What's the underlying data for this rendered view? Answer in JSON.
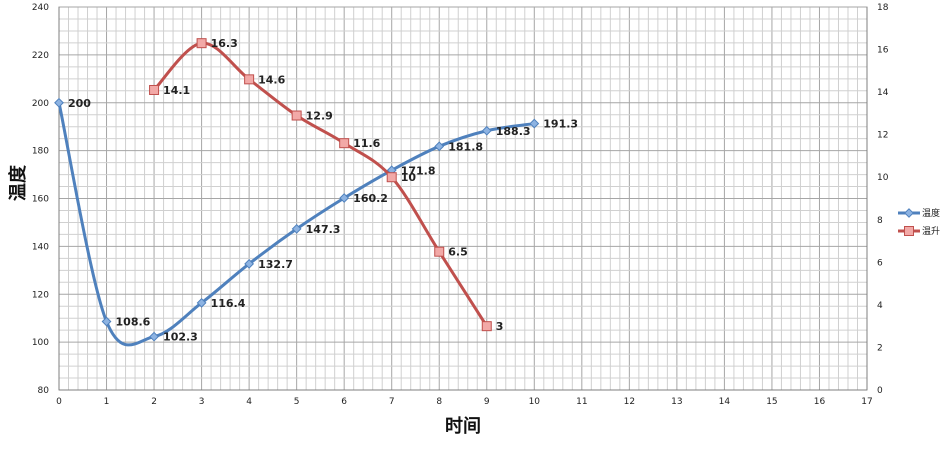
{
  "chart_data": {
    "type": "line",
    "xlabel": "时间",
    "ylabel": "温度",
    "x_ticks": [
      0,
      1,
      2,
      3,
      4,
      5,
      6,
      7,
      8,
      9,
      10,
      11,
      12,
      13,
      14,
      15,
      16,
      17
    ],
    "xlim": [
      0,
      17
    ],
    "y_left_ticks": [
      80,
      100,
      120,
      140,
      160,
      180,
      200,
      220,
      240
    ],
    "ylim_left": [
      80,
      240
    ],
    "y_right_ticks": [
      0,
      2,
      4,
      6,
      8,
      10,
      12,
      14,
      16,
      18
    ],
    "ylim_right": [
      0,
      18
    ],
    "grid": true,
    "legend_position": "right",
    "series": [
      {
        "name": "温度",
        "axis": "left",
        "color": "#4f81bd",
        "marker": "diamond",
        "smooth": true,
        "x": [
          0,
          1,
          2,
          3,
          4,
          5,
          6,
          7,
          8,
          9,
          10
        ],
        "values": [
          200,
          108.6,
          102.3,
          116.4,
          132.7,
          147.3,
          160.2,
          171.8,
          181.8,
          188.3,
          191.3
        ],
        "labels": [
          "200",
          "108.6",
          "102.3",
          "116.4",
          "132.7",
          "147.3",
          "160.2",
          "171.8",
          "181.8",
          "188.3",
          "191.3"
        ]
      },
      {
        "name": "温升",
        "axis": "right",
        "color": "#c0504d",
        "marker": "square",
        "smooth": true,
        "x": [
          2,
          3,
          4,
          5,
          6,
          7,
          8,
          9
        ],
        "values": [
          14.1,
          16.3,
          14.6,
          12.9,
          11.6,
          10,
          6.5,
          3
        ],
        "labels": [
          "14.1",
          "16.3",
          "14.6",
          "12.9",
          "11.6",
          "10",
          "6.5",
          "3"
        ]
      }
    ]
  }
}
